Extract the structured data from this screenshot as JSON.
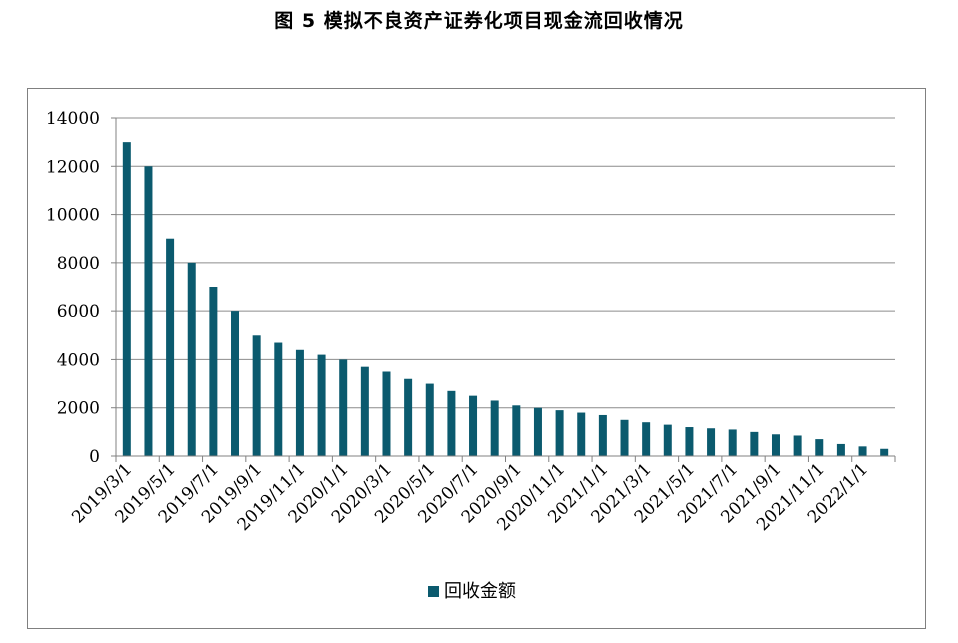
{
  "figure_title": "图 5  模拟不良资产证券化项目现金流回收情况",
  "colors": {
    "bar": "#0b5a6e",
    "grid": "#8c8c8c",
    "axis": "#808080",
    "text": "#000000"
  },
  "chart_data": {
    "type": "bar",
    "title": "",
    "xlabel": "",
    "ylabel": "",
    "ylim": [
      0,
      14000
    ],
    "y_ticks": [
      0,
      2000,
      4000,
      6000,
      8000,
      10000,
      12000,
      14000
    ],
    "grid": true,
    "legend_position": "bottom",
    "x_tick_labels": [
      "2019/3/1",
      "2019/5/1",
      "2019/7/1",
      "2019/9/1",
      "2019/11/1",
      "2020/1/1",
      "2020/3/1",
      "2020/5/1",
      "2020/7/1",
      "2020/9/1",
      "2020/11/1",
      "2021/1/1",
      "2021/3/1",
      "2021/5/1",
      "2021/7/1",
      "2021/9/1",
      "2021/11/1",
      "2022/1/1"
    ],
    "categories": [
      "2019/3/1",
      "2019/4/1",
      "2019/5/1",
      "2019/6/1",
      "2019/7/1",
      "2019/8/1",
      "2019/9/1",
      "2019/10/1",
      "2019/11/1",
      "2019/12/1",
      "2020/1/1",
      "2020/2/1",
      "2020/3/1",
      "2020/4/1",
      "2020/5/1",
      "2020/6/1",
      "2020/7/1",
      "2020/8/1",
      "2020/9/1",
      "2020/10/1",
      "2020/11/1",
      "2020/12/1",
      "2021/1/1",
      "2021/2/1",
      "2021/3/1",
      "2021/4/1",
      "2021/5/1",
      "2021/6/1",
      "2021/7/1",
      "2021/8/1",
      "2021/9/1",
      "2021/10/1",
      "2021/11/1",
      "2021/12/1",
      "2022/1/1",
      "2022/2/1"
    ],
    "series": [
      {
        "name": "回收金额",
        "values": [
          13000,
          12000,
          9000,
          8000,
          7000,
          6000,
          5000,
          4700,
          4400,
          4200,
          4000,
          3700,
          3500,
          3200,
          3000,
          2700,
          2500,
          2300,
          2100,
          2000,
          1900,
          1800,
          1700,
          1500,
          1400,
          1300,
          1200,
          1150,
          1100,
          1000,
          900,
          850,
          700,
          500,
          400,
          300
        ]
      }
    ]
  }
}
